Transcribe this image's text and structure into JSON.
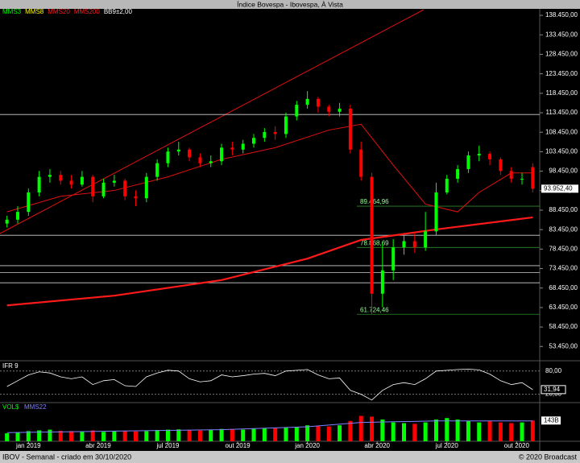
{
  "chart_data": {
    "type": "candlestick",
    "title": "Índice Bovespa - Ibovespa, À Vista",
    "footer_left": "IBOV - Semanal - criado em 30/10/2020",
    "footer_right": "© 2020 Broadcast",
    "legend": [
      {
        "name": "MMS3",
        "color": "#00ff00"
      },
      {
        "name": "MMS8",
        "color": "#ffff00"
      },
      {
        "name": "MMS20",
        "color": "#ff2020"
      },
      {
        "name": "MMS200",
        "color": "#ff2020"
      },
      {
        "name": "BB9±2,00",
        "color": "#ffffff"
      }
    ],
    "xlim": [
      -1,
      99
    ],
    "xticks": [
      {
        "value": 4,
        "label": "jan 2019"
      },
      {
        "value": 17,
        "label": "abr 2019"
      },
      {
        "value": 30,
        "label": "jul 2019"
      },
      {
        "value": 43,
        "label": "out 2019"
      },
      {
        "value": 56,
        "label": "jan 2020"
      },
      {
        "value": 69,
        "label": "abr 2020"
      },
      {
        "value": 82,
        "label": "jul 2020"
      },
      {
        "value": 95,
        "label": "out 2020"
      }
    ],
    "ylim": [
      50000,
      139500
    ],
    "yticks": [
      {
        "value": 138450,
        "label": "138.450,00"
      },
      {
        "value": 133450,
        "label": "133.450,00"
      },
      {
        "value": 128450,
        "label": "128.450,00"
      },
      {
        "value": 123450,
        "label": "123.450,00"
      },
      {
        "value": 118450,
        "label": "118.450,00"
      },
      {
        "value": 113450,
        "label": "113.450,00"
      },
      {
        "value": 108450,
        "label": "108.450,00"
      },
      {
        "value": 103450,
        "label": "103.450,00"
      },
      {
        "value": 98450,
        "label": "98.450,00"
      },
      {
        "value": 93450,
        "label": "93.450,00"
      },
      {
        "value": 88450,
        "label": "88.450,00"
      },
      {
        "value": 83450,
        "label": "83.450,00"
      },
      {
        "value": 78450,
        "label": "78.450,00"
      },
      {
        "value": 73450,
        "label": "73.450,00"
      },
      {
        "value": 68450,
        "label": "68.450,00"
      },
      {
        "value": 63450,
        "label": "63.450,00"
      },
      {
        "value": 58450,
        "label": "58.450,00"
      },
      {
        "value": 53450,
        "label": "53.450,00"
      }
    ],
    "last_price": {
      "value": 93952.4,
      "label": "93.952,40"
    },
    "levels": [
      113000,
      {
        "value": 89464.96,
        "label": "89.464,96"
      },
      82000,
      {
        "value": 78868.69,
        "label": "78.868,69"
      },
      74200,
      72400,
      69800,
      {
        "value": 61724.46,
        "label": "61.724,46"
      }
    ],
    "candles": {
      "x": [
        0,
        2,
        4,
        6,
        8,
        10,
        12,
        14,
        16,
        18,
        20,
        22,
        24,
        26,
        28,
        30,
        32,
        34,
        36,
        38,
        40,
        42,
        44,
        46,
        48,
        50,
        52,
        54,
        56,
        58,
        60,
        62,
        64,
        66,
        68,
        70,
        72,
        74,
        76,
        78,
        80,
        82,
        84,
        86,
        88,
        90,
        92,
        94,
        96,
        98
      ],
      "open": [
        85000,
        86000,
        88000,
        93000,
        97000,
        97500,
        96000,
        95000,
        97000,
        92000,
        95500,
        96000,
        92000,
        91500,
        97000,
        100500,
        103500,
        104000,
        102000,
        100500,
        101000,
        104500,
        104000,
        105500,
        107000,
        108500,
        108000,
        112500,
        115500,
        117000,
        115000,
        113700,
        114500,
        104000,
        97000,
        67000,
        73000,
        78900,
        80500,
        78900,
        83000,
        93000,
        96500,
        99000,
        102500,
        102900,
        101500,
        98500,
        96500,
        99500
      ],
      "high": [
        87000,
        89500,
        94000,
        98500,
        99000,
        98500,
        97500,
        98500,
        97500,
        96500,
        97500,
        96500,
        93500,
        98000,
        101500,
        104500,
        106000,
        104500,
        103000,
        102500,
        105500,
        106000,
        106500,
        108000,
        109500,
        110000,
        113500,
        116500,
        119000,
        117500,
        115500,
        116000,
        115500,
        106000,
        98000,
        80000,
        81000,
        82000,
        82500,
        88000,
        95500,
        97500,
        100000,
        103500,
        105000,
        103500,
        102000,
        99500,
        98000,
        100500
      ],
      "low": [
        84000,
        85000,
        87000,
        92000,
        95500,
        95000,
        94000,
        94500,
        90500,
        91500,
        94500,
        91000,
        89500,
        90500,
        96000,
        99500,
        102500,
        101000,
        99500,
        99500,
        100000,
        102500,
        103000,
        104500,
        106000,
        106500,
        107000,
        111500,
        114500,
        113500,
        112500,
        112500,
        103000,
        96000,
        61724.46,
        63500,
        70500,
        77000,
        77500,
        78000,
        82000,
        92500,
        95500,
        98000,
        101000,
        100000,
        97500,
        95500,
        95000,
        93000
      ],
      "close": [
        86000,
        88000,
        93000,
        97000,
        97500,
        96000,
        95000,
        97000,
        92000,
        95500,
        96000,
        92000,
        91500,
        97000,
        100500,
        103500,
        104000,
        102000,
        100500,
        101000,
        104500,
        104000,
        105500,
        107000,
        108500,
        108000,
        112500,
        115500,
        117000,
        115000,
        113700,
        114500,
        104000,
        97000,
        67000,
        73000,
        78900,
        80500,
        78900,
        83000,
        93000,
        96500,
        99000,
        102500,
        102900,
        101500,
        98500,
        96500,
        96500,
        93952.4
      ],
      "up_color": "#00ff00",
      "down_color": "#ff0000"
    },
    "series": [
      {
        "name": "MMS20",
        "color": "#e01010",
        "x": [
          0,
          10,
          20,
          30,
          40,
          50,
          60,
          66,
          72,
          78,
          84,
          88,
          94,
          98
        ],
        "values": [
          88000,
          92000,
          93500,
          97000,
          101500,
          104500,
          109000,
          110500,
          100000,
          90000,
          88000,
          93000,
          98000,
          98000
        ]
      },
      {
        "name": "MMS200",
        "color": "#ff1a1a",
        "x": [
          0,
          20,
          40,
          56,
          66,
          80,
          98
        ],
        "values": [
          64000,
          66500,
          70500,
          76000,
          80800,
          83500,
          86600
        ]
      }
    ],
    "rsi": {
      "title": "IFR 9",
      "ylim": [
        2.5,
        102.5
      ],
      "yticks": [
        {
          "value": 80,
          "label": "80,00"
        },
        {
          "value": 20,
          "label": "20,00"
        }
      ],
      "values": [
        40,
        55,
        70,
        78,
        75,
        65,
        60,
        65,
        45,
        55,
        58,
        42,
        40,
        65,
        75,
        82,
        80,
        60,
        52,
        55,
        70,
        65,
        68,
        72,
        74,
        68,
        80,
        82,
        84,
        70,
        60,
        62,
        30,
        20,
        5,
        30,
        45,
        50,
        45,
        60,
        80,
        82,
        84,
        85,
        83,
        72,
        55,
        45,
        50,
        31.94
      ],
      "last": {
        "value": 31.94,
        "label": "31,94"
      }
    },
    "volume": {
      "title": "VOL$",
      "ma_name": "MMS22",
      "ma_color": "#8080ff",
      "ylim": [
        0,
        200
      ],
      "values": [
        55,
        60,
        70,
        75,
        80,
        72,
        70,
        68,
        75,
        65,
        70,
        72,
        68,
        70,
        78,
        80,
        82,
        76,
        74,
        80,
        85,
        82,
        80,
        88,
        90,
        92,
        95,
        100,
        110,
        105,
        102,
        110,
        140,
        175,
        170,
        150,
        130,
        125,
        120,
        130,
        150,
        160,
        150,
        140,
        130,
        140,
        130,
        125,
        130,
        143
      ],
      "ma_x": [
        0,
        20,
        40,
        56,
        66,
        80,
        98
      ],
      "ma_values": [
        60,
        70,
        80,
        100,
        130,
        140,
        140
      ],
      "last": {
        "value": 143,
        "label": "143B"
      }
    }
  }
}
